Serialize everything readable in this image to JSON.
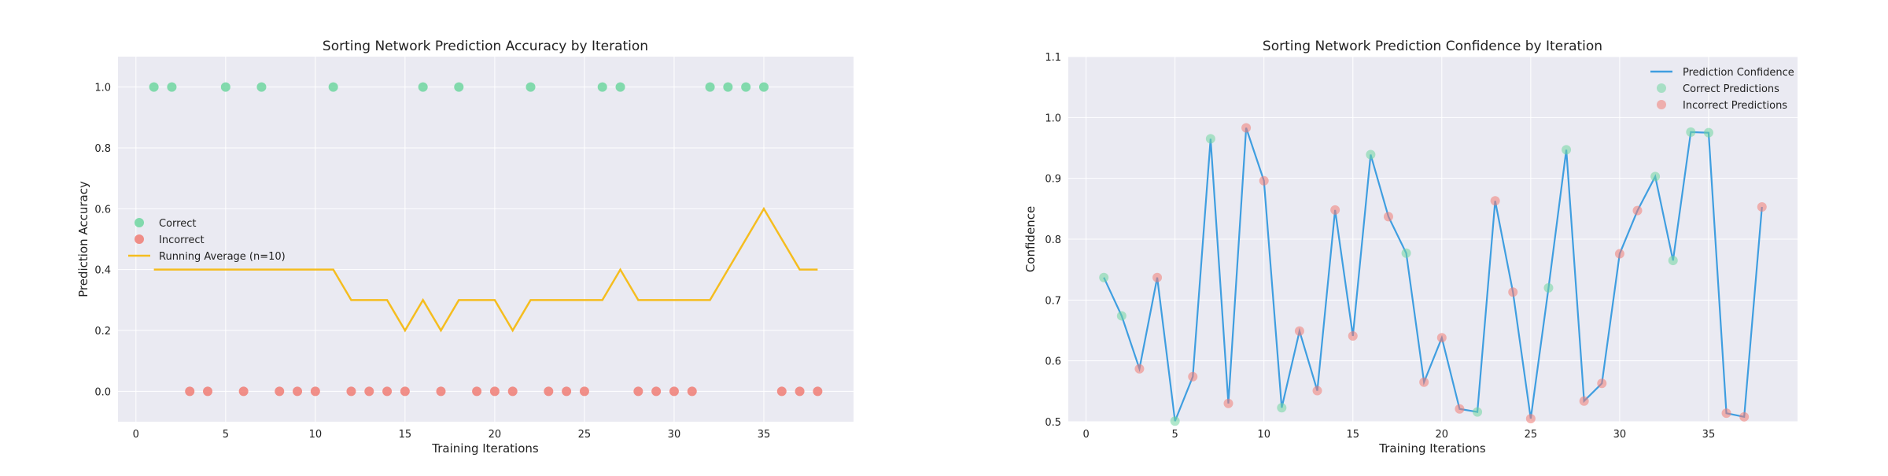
{
  "chart_data": [
    {
      "type": "scatter",
      "title": "Sorting Network Prediction Accuracy by Iteration",
      "xlabel": "Training Iterations",
      "ylabel": "Prediction Accuracy",
      "xlim": [
        -1,
        40
      ],
      "ylim": [
        -0.1,
        1.1
      ],
      "xticks": [
        0,
        5,
        10,
        15,
        20,
        25,
        30,
        35
      ],
      "yticks": [
        0.0,
        0.2,
        0.4,
        0.6,
        0.8,
        1.0
      ],
      "grid": true,
      "legend_position": "center-left",
      "series": [
        {
          "name": "Correct",
          "color": "#6fd6a0",
          "x": [
            1,
            2,
            5,
            7,
            11,
            16,
            18,
            22,
            26,
            27,
            32,
            33,
            34,
            35
          ],
          "y": [
            1,
            1,
            1,
            1,
            1,
            1,
            1,
            1,
            1,
            1,
            1,
            1,
            1,
            1
          ]
        },
        {
          "name": "Incorrect",
          "color": "#f07c74",
          "x": [
            3,
            4,
            6,
            8,
            9,
            10,
            12,
            13,
            14,
            15,
            17,
            19,
            20,
            21,
            23,
            24,
            25,
            28,
            29,
            30,
            31,
            36,
            37,
            38
          ],
          "y": [
            0,
            0,
            0,
            0,
            0,
            0,
            0,
            0,
            0,
            0,
            0,
            0,
            0,
            0,
            0,
            0,
            0,
            0,
            0,
            0,
            0,
            0,
            0,
            0
          ]
        },
        {
          "name": "Running Average (n=10)",
          "color": "#f5bd1f",
          "type": "line",
          "x": [
            1,
            2,
            3,
            4,
            5,
            6,
            7,
            8,
            9,
            10,
            11,
            12,
            13,
            14,
            15,
            16,
            17,
            18,
            19,
            20,
            21,
            22,
            23,
            24,
            25,
            26,
            27,
            28,
            29,
            30,
            31,
            32,
            33,
            34,
            35,
            36,
            37,
            38
          ],
          "y": [
            0.4,
            0.4,
            0.4,
            0.4,
            0.4,
            0.4,
            0.4,
            0.4,
            0.4,
            0.4,
            0.4,
            0.3,
            0.3,
            0.3,
            0.2,
            0.3,
            0.2,
            0.3,
            0.3,
            0.3,
            0.2,
            0.3,
            0.3,
            0.3,
            0.3,
            0.3,
            0.4,
            0.3,
            0.3,
            0.3,
            0.3,
            0.3,
            0.4,
            0.5,
            0.6,
            0.5,
            0.4,
            0.4
          ]
        }
      ]
    },
    {
      "type": "line",
      "title": "Sorting Network Prediction Confidence by Iteration",
      "xlabel": "Training Iterations",
      "ylabel": "Confidence",
      "xlim": [
        -1,
        40
      ],
      "ylim": [
        0.5,
        1.1
      ],
      "xticks": [
        0,
        5,
        10,
        15,
        20,
        25,
        30,
        35
      ],
      "yticks": [
        0.5,
        0.6,
        0.7,
        0.8,
        0.9,
        1.0,
        1.1
      ],
      "grid": true,
      "legend_position": "top-right",
      "series": [
        {
          "name": "Prediction Confidence",
          "color": "#3f9ee0",
          "type": "line",
          "x": [
            1,
            2,
            3,
            4,
            5,
            6,
            7,
            8,
            9,
            10,
            11,
            12,
            13,
            14,
            15,
            16,
            17,
            18,
            19,
            20,
            21,
            22,
            23,
            24,
            25,
            26,
            27,
            28,
            29,
            30,
            31,
            32,
            33,
            34,
            35,
            36,
            37,
            38
          ],
          "y": [
            0.737,
            0.674,
            0.587,
            0.737,
            0.501,
            0.574,
            0.965,
            0.53,
            0.983,
            0.896,
            0.523,
            0.649,
            0.551,
            0.848,
            0.641,
            0.939,
            0.837,
            0.777,
            0.565,
            0.638,
            0.521,
            0.516,
            0.863,
            0.713,
            0.505,
            0.72,
            0.947,
            0.534,
            0.563,
            0.776,
            0.847,
            0.903,
            0.765,
            0.976,
            0.975,
            0.514,
            0.508,
            0.853
          ]
        },
        {
          "name": "Correct Predictions",
          "color": "#6fd6a0",
          "type": "scatter",
          "x": [
            1,
            2,
            5,
            7,
            11,
            16,
            18,
            22,
            26,
            27,
            32,
            33,
            34,
            35
          ],
          "y": [
            0.737,
            0.674,
            0.501,
            0.965,
            0.523,
            0.939,
            0.777,
            0.516,
            0.72,
            0.947,
            0.903,
            0.765,
            0.976,
            0.975
          ]
        },
        {
          "name": "Incorrect Predictions",
          "color": "#f07c74",
          "type": "scatter",
          "x": [
            3,
            4,
            6,
            8,
            9,
            10,
            12,
            13,
            14,
            15,
            17,
            19,
            20,
            21,
            23,
            24,
            25,
            28,
            29,
            30,
            31,
            36,
            37,
            38
          ],
          "y": [
            0.587,
            0.737,
            0.574,
            0.53,
            0.983,
            0.896,
            0.649,
            0.551,
            0.848,
            0.641,
            0.837,
            0.565,
            0.638,
            0.521,
            0.863,
            0.713,
            0.505,
            0.534,
            0.563,
            0.776,
            0.847,
            0.514,
            0.508,
            0.853
          ]
        }
      ]
    }
  ]
}
